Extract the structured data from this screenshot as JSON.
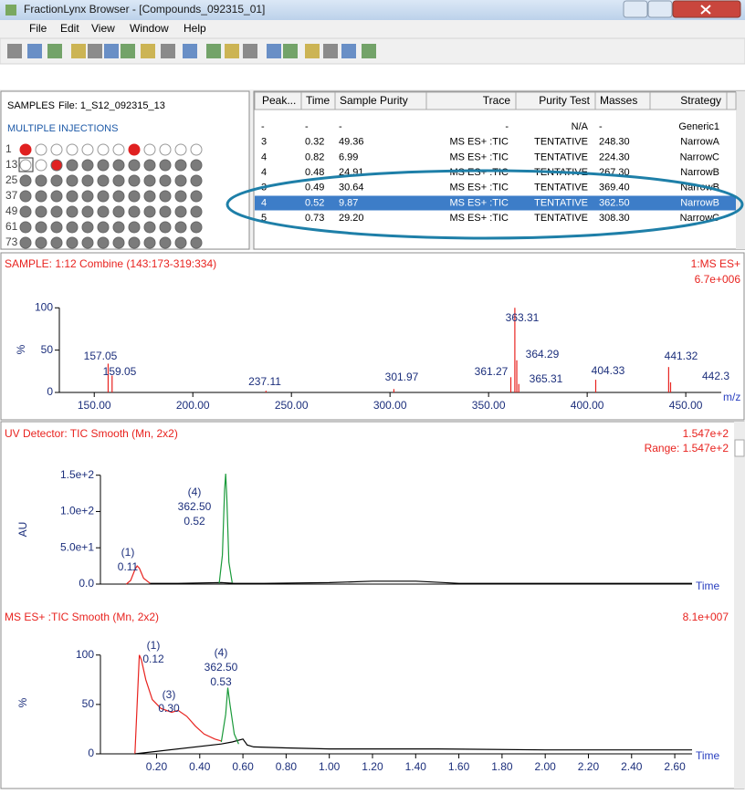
{
  "window": {
    "title": "FractionLynx Browser - [Compounds_092315_01]"
  },
  "menu": [
    "File",
    "Edit",
    "View",
    "Window",
    "Help"
  ],
  "samples": {
    "label": "SAMPLES",
    "file": "File:  1_S12_092315_13",
    "mode": "MULTIPLE INJECTIONS",
    "row_labels": [
      "1",
      "13",
      "25",
      "37",
      "49",
      "61",
      "73"
    ]
  },
  "table": {
    "headers": [
      "Peak...",
      "Time",
      "Sample Purity",
      "Trace",
      "Purity Test",
      "Masses",
      "Strategy"
    ],
    "rows": [
      [
        "-",
        "-",
        "-",
        "-",
        "N/A",
        "-",
        "Generic1"
      ],
      [
        "3",
        "0.32",
        "49.36",
        "MS ES+ :TIC",
        "TENTATIVE",
        "248.30",
        "NarrowA"
      ],
      [
        "4",
        "0.82",
        "6.99",
        "MS ES+ :TIC",
        "TENTATIVE",
        "224.30",
        "NarrowC"
      ],
      [
        "4",
        "0.48",
        "24.91",
        "MS ES+ :TIC",
        "TENTATIVE",
        "267.30",
        "NarrowB"
      ],
      [
        "3",
        "0.49",
        "30.64",
        "MS ES+ :TIC",
        "TENTATIVE",
        "369.40",
        "NarrowB"
      ],
      [
        "4",
        "0.52",
        "9.87",
        "MS ES+ :TIC",
        "TENTATIVE",
        "362.50",
        "NarrowB"
      ],
      [
        "5",
        "0.73",
        "29.20",
        "MS ES+ :TIC",
        "TENTATIVE",
        "308.30",
        "NarrowC"
      ]
    ]
  },
  "spectrum": {
    "title": "SAMPLE: 1:12 Combine (143:173-319:334)",
    "trace": "1:MS ES+",
    "scale": "6.7e+006",
    "y_label": "%",
    "x_label": "m/z",
    "color": "#e8231f",
    "xlim": [
      132.3,
      468
    ],
    "ylim": [
      0,
      110
    ],
    "yticks": [
      0,
      50,
      100
    ],
    "xticks": [
      {
        "value": 150,
        "label": "150.00"
      },
      {
        "value": 200,
        "label": "200.00"
      },
      {
        "value": 250,
        "label": "250.00"
      },
      {
        "value": 300,
        "label": "300.00"
      },
      {
        "value": 350,
        "label": "350.00"
      },
      {
        "value": 400,
        "label": "400.00"
      },
      {
        "value": 450,
        "label": "450.00"
      }
    ],
    "peaks": {
      "x": [
        157.05,
        159.05,
        237.11,
        301.97,
        361.27,
        363.31,
        364.29,
        365.31,
        404.33,
        441.32,
        442.3
      ],
      "values": [
        34,
        20,
        2,
        4,
        18,
        100,
        38,
        10,
        15,
        30,
        12
      ]
    }
  },
  "uv": {
    "title": "UV Detector: TIC Smooth (Mn, 2x2)",
    "scale": "1.547e+2",
    "range": "Range: 1.547e+2",
    "y_label": "AU",
    "x_label": "Time",
    "xlim": [
      -0.06,
      2.68
    ],
    "ylim": [
      0,
      176
    ],
    "yticks": [
      {
        "value": 0,
        "label": "0.0"
      },
      {
        "value": 50,
        "label": "5.0e+1"
      },
      {
        "value": 100,
        "label": "1.0e+2"
      },
      {
        "value": 150,
        "label": "1.5e+2"
      }
    ],
    "traces": [
      {
        "color": "#e8231f",
        "x": [
          0.06,
          0.08,
          0.1,
          0.11,
          0.12,
          0.14,
          0.17
        ],
        "values": [
          0,
          5,
          20,
          25,
          22,
          8,
          1
        ]
      },
      {
        "color": "#000000",
        "x": [
          0.17,
          0.3,
          0.5,
          0.56,
          0.7,
          1.0,
          1.2,
          1.4,
          1.6,
          2.0,
          2.4,
          2.68
        ],
        "values": [
          1,
          1,
          2,
          1,
          1,
          2,
          4,
          4,
          1,
          1,
          1,
          1
        ]
      },
      {
        "color": "#1a9a3a",
        "x": [
          0.49,
          0.505,
          0.515,
          0.52,
          0.525,
          0.535,
          0.55
        ],
        "values": [
          1,
          40,
          130,
          152,
          120,
          30,
          2
        ]
      }
    ],
    "annotations": [
      [
        "(1)",
        "0.11"
      ],
      [
        "(4)",
        "362.50",
        "0.52"
      ]
    ]
  },
  "ms": {
    "title": "MS ES+ :TIC Smooth (Mn, 2x2)",
    "scale": "8.1e+007",
    "y_label": "%",
    "x_label": "Time",
    "xlim": [
      -0.06,
      2.68
    ],
    "ylim": [
      0,
      121
    ],
    "yticks": [
      0,
      50,
      100
    ],
    "xticks": [
      {
        "value": 0.2,
        "label": "0.20"
      },
      {
        "value": 0.4,
        "label": "0.40"
      },
      {
        "value": 0.6,
        "label": "0.60"
      },
      {
        "value": 0.8,
        "label": "0.80"
      },
      {
        "value": 1,
        "label": "1.00"
      },
      {
        "value": 1.2,
        "label": "1.20"
      },
      {
        "value": 1.4,
        "label": "1.40"
      },
      {
        "value": 1.6,
        "label": "1.60"
      },
      {
        "value": 1.8,
        "label": "1.80"
      },
      {
        "value": 2,
        "label": "2.00"
      },
      {
        "value": 2.2,
        "label": "2.20"
      },
      {
        "value": 2.4,
        "label": "2.40"
      },
      {
        "value": 2.6,
        "label": "2.60"
      }
    ],
    "traces": [
      {
        "color": "#e8231f",
        "x": [
          0.1,
          0.12,
          0.13,
          0.15,
          0.18,
          0.22,
          0.27,
          0.3,
          0.34,
          0.38,
          0.42,
          0.47,
          0.5
        ],
        "values": [
          0,
          100,
          95,
          75,
          55,
          46,
          42,
          44,
          38,
          28,
          20,
          15,
          13
        ]
      },
      {
        "color": "#000000",
        "x": [
          0.1,
          0.5,
          0.55,
          0.6,
          0.62,
          0.65,
          0.8,
          1.0,
          1.5,
          2.0,
          2.5,
          2.68
        ],
        "values": [
          0,
          10,
          12,
          15,
          9,
          7,
          6,
          5,
          5,
          4,
          4,
          4
        ]
      },
      {
        "color": "#1a9a3a",
        "x": [
          0.5,
          0.52,
          0.53,
          0.54,
          0.56,
          0.58
        ],
        "values": [
          12,
          40,
          67,
          50,
          20,
          10
        ]
      }
    ],
    "annotations": [
      [
        "(1)",
        "0.12"
      ],
      [
        "(3)",
        "0.30"
      ],
      [
        "(4)",
        "362.50",
        "0.53"
      ]
    ]
  }
}
